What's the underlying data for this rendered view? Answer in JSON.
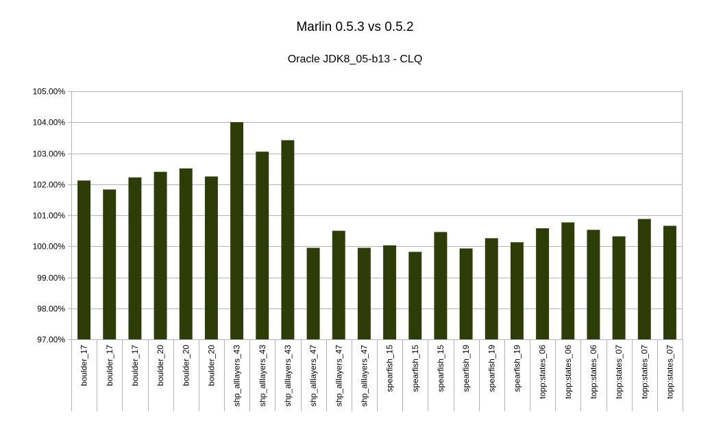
{
  "chart_data": {
    "type": "bar",
    "title": "Marlin 0.5.3 vs 0.5.2",
    "subtitle": "Oracle JDK8_05-b13 - CLQ",
    "xlabel": "",
    "ylabel": "",
    "ylim": [
      97,
      105
    ],
    "yticks": [
      "97.00%",
      "98.00%",
      "99.00%",
      "100.00%",
      "101.00%",
      "102.00%",
      "103.00%",
      "104.00%",
      "105.00%"
    ],
    "grid": true,
    "legend": "none",
    "bar_color": "#2e3d07",
    "categories": [
      "boulder_17",
      "boulder_17",
      "boulder_17",
      "boulder_20",
      "boulder_20",
      "boulder_20",
      "shp_alllayers_43",
      "shp_alllayers_43",
      "shp_alllayers_43",
      "shp_alllayers_47",
      "shp_alllayers_47",
      "shp_alllayers_47",
      "spearfish_15",
      "spearfish_15",
      "spearfish_15",
      "spearfish_19",
      "spearfish_19",
      "spearfish_19",
      "topp:states_06",
      "topp:states_06",
      "topp:states_06",
      "topp:states_07",
      "topp:states_07",
      "topp:states_07"
    ],
    "values": [
      102.12,
      101.83,
      102.22,
      102.4,
      102.51,
      102.25,
      104.0,
      103.05,
      103.42,
      99.95,
      100.5,
      99.95,
      100.03,
      99.82,
      100.46,
      99.93,
      100.26,
      100.13,
      100.58,
      100.77,
      100.53,
      100.32,
      100.88,
      100.66
    ]
  }
}
